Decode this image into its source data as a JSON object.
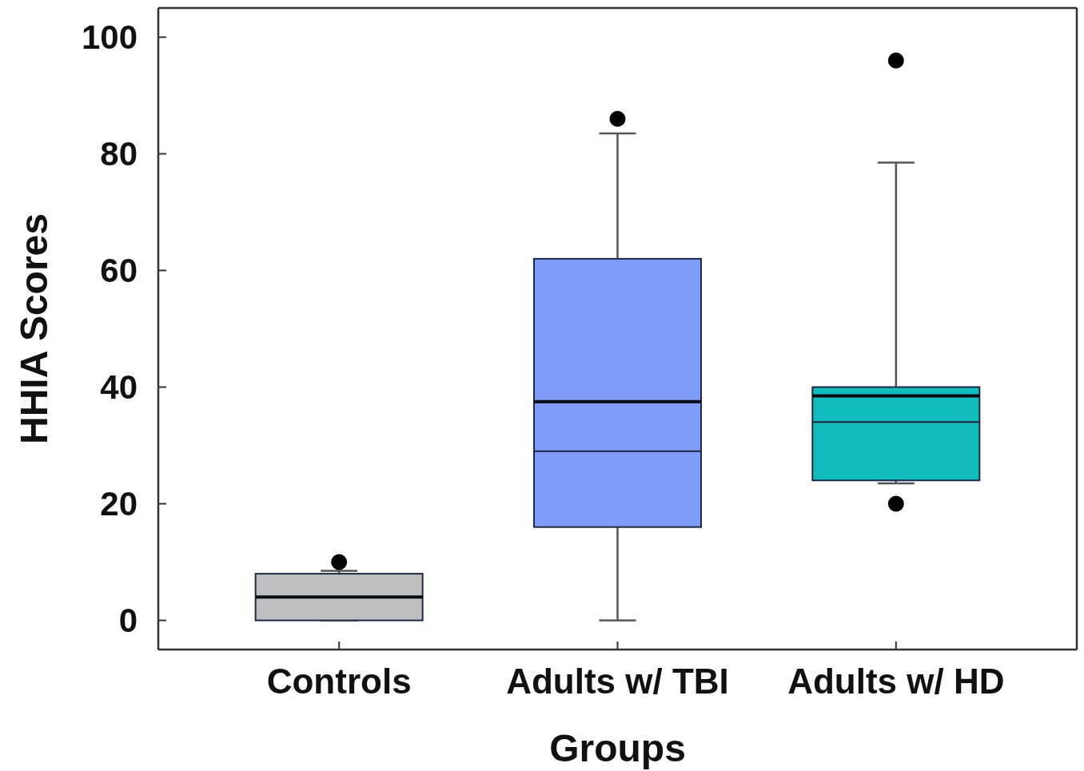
{
  "chart_data": {
    "type": "box",
    "xlabel": "Groups",
    "ylabel": "HHIA Scores",
    "categories": [
      "Controls",
      "Adults w/ TBI",
      "Adults w/ HD"
    ],
    "boxes": [
      {
        "low": 0,
        "q1": 0,
        "median": 4,
        "q3": 8,
        "high": 8.5,
        "mean": 4,
        "outliers": [
          10
        ]
      },
      {
        "low": 0,
        "q1": 16,
        "median": 29,
        "q3": 62,
        "high": 83.5,
        "mean": 37.5,
        "outliers": [
          86
        ]
      },
      {
        "low": 23.5,
        "q1": 24,
        "median": 34,
        "q3": 40,
        "high": 78.5,
        "mean": 38.5,
        "outliers": [
          96,
          20
        ]
      }
    ],
    "colors": [
      "#bfbfbf",
      "#809cf9",
      "#13bcbc"
    ],
    "ylim": [
      -5,
      105
    ],
    "yticks": [
      0,
      20,
      40,
      60,
      80,
      100
    ]
  }
}
